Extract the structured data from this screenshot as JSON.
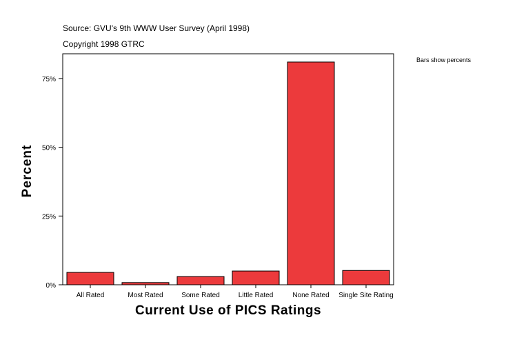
{
  "header": {
    "source": "Source: GVU's 9th WWW User Survey (April 1998)",
    "copyright": "Copyright 1998 GTRC"
  },
  "note": "Bars show percents",
  "colors": {
    "bar": "#ec3a3c",
    "bar_stroke": "#000000"
  },
  "chart_data": {
    "type": "bar",
    "title": "",
    "xlabel": "Current Use of PICS Ratings",
    "ylabel": "Percent",
    "categories": [
      "All Rated",
      "Most Rated",
      "Some Rated",
      "Little Rated",
      "None Rated",
      "Single Site Rating"
    ],
    "values": [
      4.5,
      0.8,
      3.0,
      5.0,
      81.0,
      5.2
    ],
    "ylim": [
      0,
      84
    ],
    "yticks": [
      0,
      25,
      50,
      75
    ],
    "ytick_labels": [
      "0%",
      "25%",
      "50%",
      "75%"
    ],
    "grid": false,
    "legend": "none"
  }
}
